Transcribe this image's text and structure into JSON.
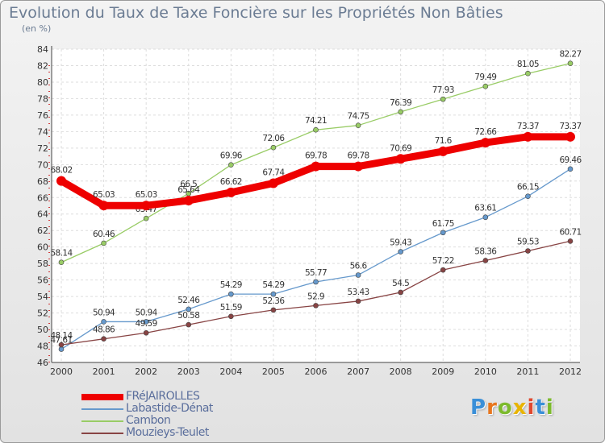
{
  "header": {
    "title": "Evolution du Taux de Taxe Foncière sur les Propriétés Non Bâties",
    "unit": "(en %)"
  },
  "logo": {
    "text": "Proxiti",
    "letter_colors": [
      "#3a8fd8",
      "#e8761e",
      "#7cba2d",
      "#e8b400",
      "#e0482e",
      "#3a8fd8",
      "#7cba2d"
    ]
  },
  "chart_data": {
    "type": "line",
    "title": "Evolution du Taux de Taxe Foncière sur les Propriétés Non Bâties",
    "ylabel": "(en %)",
    "xlabel": "",
    "x": [
      "2000",
      "2001",
      "2002",
      "2003",
      "2004",
      "2005",
      "2006",
      "2007",
      "2008",
      "2009",
      "2010",
      "2011",
      "2012"
    ],
    "ylim": [
      46,
      84
    ],
    "yticks": [
      46,
      48,
      50,
      52,
      54,
      56,
      58,
      60,
      62,
      64,
      66,
      68,
      70,
      72,
      74,
      76,
      78,
      80,
      82,
      84
    ],
    "grid": true,
    "legend_position": "bottom-left",
    "series": [
      {
        "name": "FRéJAIROLLES",
        "color": "#ee0000",
        "labels": [
          "68.02",
          "65.03",
          "65.03",
          "65.64",
          "66.62",
          "67.74",
          "69.78",
          "69.78",
          "70.69",
          "71.6",
          "72.66",
          "73.37",
          "73.37"
        ],
        "values": [
          68.02,
          65.03,
          65.03,
          65.64,
          66.62,
          67.74,
          69.78,
          69.78,
          70.69,
          71.6,
          72.66,
          73.37,
          73.37
        ]
      },
      {
        "name": "Labastide-Dénat",
        "color": "#6699cc",
        "labels": [
          "47.61",
          "50.94",
          "50.94",
          "52.46",
          "54.29",
          "54.29",
          "55.77",
          "56.6",
          "59.43",
          "61.75",
          "63.61",
          "66.15",
          "69.46"
        ],
        "values": [
          47.61,
          50.94,
          50.94,
          52.46,
          54.29,
          54.29,
          55.77,
          56.6,
          59.43,
          61.75,
          63.61,
          66.15,
          69.46
        ]
      },
      {
        "name": "Cambon",
        "color": "#99cc66",
        "labels": [
          "58.14",
          "60.46",
          "63.47",
          "66.5",
          "69.96",
          "72.06",
          "74.21",
          "74.75",
          "76.39",
          "77.93",
          "79.49",
          "81.05",
          "82.27"
        ],
        "values": [
          58.14,
          60.46,
          63.47,
          66.5,
          69.96,
          72.06,
          74.21,
          74.75,
          76.39,
          77.93,
          79.49,
          81.05,
          82.27
        ]
      },
      {
        "name": "Mouzieys-Teulet",
        "color": "#884444",
        "labels": [
          "48.14",
          "48.86",
          "49.59",
          "50.58",
          "51.59",
          "52.36",
          "52.9",
          "53.43",
          "54.5",
          "57.22",
          "58.36",
          "59.53",
          "60.71"
        ],
        "values": [
          48.14,
          48.86,
          49.59,
          50.58,
          51.59,
          52.36,
          52.9,
          53.43,
          54.5,
          57.22,
          58.36,
          59.53,
          60.71
        ]
      }
    ]
  }
}
